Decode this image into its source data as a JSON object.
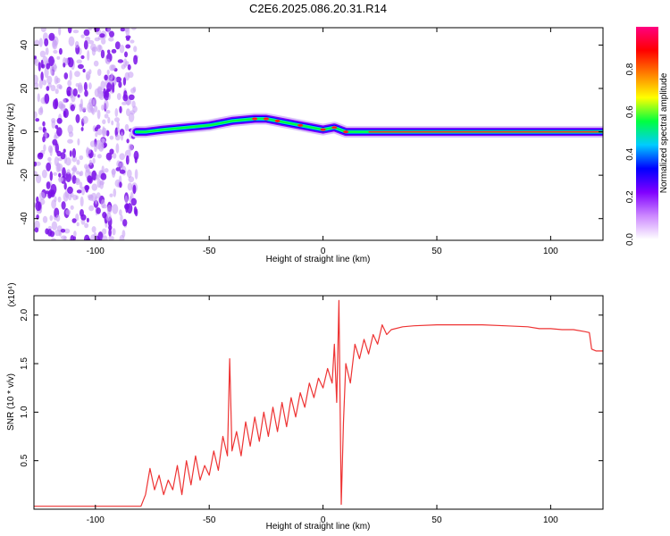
{
  "title": "C2E6.2025.086.20.31.R14",
  "chart_data": [
    {
      "type": "heatmap",
      "xlabel": "Height of straight line (km)",
      "ylabel": "Frequency (Hz)",
      "xlim": [
        -127,
        123
      ],
      "ylim": [
        -50,
        48
      ],
      "xticks": [
        -100,
        -50,
        0,
        50,
        100
      ],
      "yticks": [
        -40,
        -20,
        0,
        20,
        40
      ],
      "ridge": {
        "x": [
          -82,
          -78,
          -70,
          -60,
          -50,
          -40,
          -30,
          -25,
          -20,
          -10,
          0,
          5,
          10,
          20,
          30,
          50,
          80,
          100,
          123
        ],
        "freq": [
          0,
          0,
          1,
          2,
          3,
          5,
          6,
          6,
          5,
          3,
          1,
          2,
          0,
          0,
          0,
          0,
          0,
          0,
          0
        ]
      },
      "colorbar": {
        "label": "Normalized spectral amplitude",
        "range": [
          0.0,
          1.0
        ],
        "ticks": [
          0.0,
          0.2,
          0.4,
          0.6,
          0.8
        ],
        "tick_labels": [
          "0.0",
          "0.2",
          "0.4",
          "0.6",
          "0.8"
        ],
        "colors": [
          "#ffffff",
          "#cc88ff",
          "#8000ff",
          "#0000ff",
          "#00ccff",
          "#00ff40",
          "#ffff00",
          "#ff8000",
          "#ff0000",
          "#ff0080"
        ]
      }
    },
    {
      "type": "line",
      "xlabel": "Height of straight line (km)",
      "ylabel": "SNR (10 * v/v)",
      "multiplier_label": "(x10⁴)",
      "xlim": [
        -127,
        123
      ],
      "ylim": [
        0,
        2.2
      ],
      "xticks": [
        -100,
        -50,
        0,
        50,
        100
      ],
      "yticks": [
        0.5,
        1.0,
        1.5,
        2.0
      ],
      "ytick_labels": [
        "0.5",
        "1.0",
        "1.5",
        "2.0"
      ],
      "color": "#ee3333",
      "series": [
        {
          "x": [
            -127,
            -80,
            -78,
            -76,
            -74,
            -72,
            -70,
            -68,
            -66,
            -64,
            -62,
            -60,
            -58,
            -56,
            -54,
            -52,
            -50,
            -48,
            -46,
            -44,
            -42,
            -41,
            -40,
            -38,
            -36,
            -34,
            -32,
            -30,
            -28,
            -26,
            -24,
            -22,
            -20,
            -18,
            -16,
            -14,
            -12,
            -10,
            -8,
            -6,
            -4,
            -2,
            0,
            2,
            4,
            5,
            6,
            7,
            8,
            9,
            10,
            12,
            14,
            16,
            18,
            20,
            22,
            24,
            26,
            28,
            30,
            35,
            40,
            50,
            60,
            70,
            80,
            90,
            95,
            100,
            105,
            110,
            115,
            117,
            118,
            120,
            123
          ],
          "y": [
            0.03,
            0.03,
            0.15,
            0.42,
            0.2,
            0.35,
            0.15,
            0.3,
            0.2,
            0.45,
            0.15,
            0.5,
            0.25,
            0.55,
            0.3,
            0.45,
            0.35,
            0.6,
            0.4,
            0.75,
            0.55,
            1.55,
            0.6,
            0.8,
            0.55,
            0.9,
            0.65,
            0.95,
            0.7,
            1.0,
            0.75,
            1.05,
            0.8,
            1.1,
            0.85,
            1.15,
            0.95,
            1.2,
            1.05,
            1.3,
            1.15,
            1.35,
            1.25,
            1.45,
            1.3,
            1.7,
            1.1,
            2.15,
            0.05,
            0.9,
            1.5,
            1.3,
            1.7,
            1.55,
            1.75,
            1.6,
            1.8,
            1.7,
            1.9,
            1.8,
            1.85,
            1.88,
            1.89,
            1.9,
            1.9,
            1.9,
            1.89,
            1.88,
            1.86,
            1.86,
            1.85,
            1.85,
            1.83,
            1.82,
            1.65,
            1.63,
            1.63
          ]
        }
      ]
    }
  ]
}
